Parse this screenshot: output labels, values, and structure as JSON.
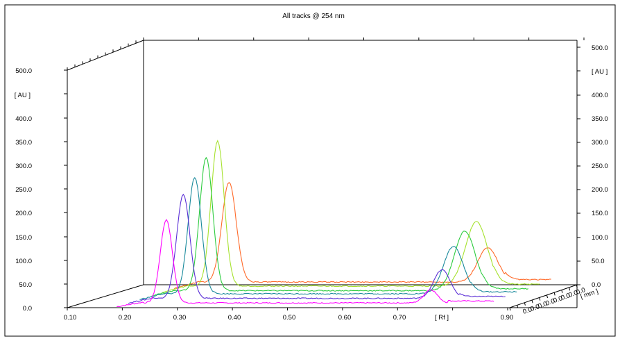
{
  "chart_data": {
    "type": "line",
    "title": "All tracks @ 254 nm",
    "view": "3d-perspective",
    "x_axis": {
      "label": "[ Rf ]",
      "range": [
        0.1,
        0.9
      ],
      "ticks": [
        "0.10",
        "0.20",
        "0.30",
        "0.40",
        "0.50",
        "0.60",
        "0.70",
        "0.90"
      ]
    },
    "y_axis_left": {
      "label": "[ AU ]",
      "range": [
        0.0,
        500.0
      ],
      "ticks": [
        "0.0",
        "50.0",
        "100.0",
        "150.0",
        "200.0",
        "250.0",
        "300.0",
        "350.0",
        "400.0",
        "500.0"
      ]
    },
    "y_axis_right": {
      "label": "[ AU ]",
      "ticks": [
        "0.0",
        "50.0",
        "100.0",
        "150.0",
        "200.0",
        "250.0",
        "300.0",
        "350.0",
        "400.0",
        "500.0"
      ]
    },
    "z_axis": {
      "label": "[ mm ]",
      "ticks": [
        "0.0",
        "0.0",
        "0.0",
        "0.0",
        "0.0",
        "0.0",
        "0.0",
        "0.0"
      ]
    },
    "grid": false,
    "series": [
      {
        "color": "#ff00ff",
        "depth": 0,
        "baseline": 10,
        "tail": 14,
        "peaks": [
          {
            "rf": 0.28,
            "h": 175,
            "w": 0.011
          },
          {
            "rf": 0.76,
            "h": 28,
            "w": 0.012
          }
        ]
      },
      {
        "color": "#5b2fd6",
        "depth": 1,
        "baseline": 12,
        "tail": 16,
        "peaks": [
          {
            "rf": 0.29,
            "h": 218,
            "w": 0.012
          },
          {
            "rf": 0.76,
            "h": 60,
            "w": 0.015
          }
        ]
      },
      {
        "color": "#1a8a9c",
        "depth": 2,
        "baseline": 14,
        "tail": 18,
        "peaks": [
          {
            "rf": 0.29,
            "h": 245,
            "w": 0.012
          },
          {
            "rf": 0.76,
            "h": 100,
            "w": 0.018
          }
        ]
      },
      {
        "color": "#2ecc40",
        "depth": 3,
        "baseline": 13,
        "tail": 17,
        "peaks": [
          {
            "rf": 0.29,
            "h": 280,
            "w": 0.012
          },
          {
            "rf": 0.76,
            "h": 125,
            "w": 0.019
          }
        ]
      },
      {
        "color": "#a6e22e",
        "depth": 4,
        "baseline": 15,
        "tail": 19,
        "peaks": [
          {
            "rf": 0.29,
            "h": 305,
            "w": 0.012
          },
          {
            "rf": 0.76,
            "h": 135,
            "w": 0.02
          }
        ]
      },
      {
        "color": "#ff6a2a",
        "depth": 5,
        "baseline": 16,
        "tail": 21,
        "peaks": [
          {
            "rf": 0.29,
            "h": 210,
            "w": 0.013
          },
          {
            "rf": 0.76,
            "h": 72,
            "w": 0.018
          }
        ]
      }
    ]
  }
}
